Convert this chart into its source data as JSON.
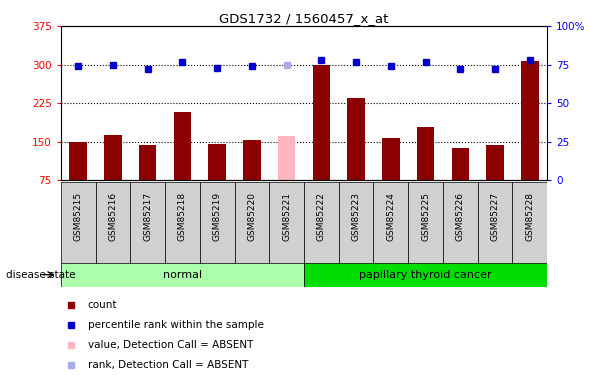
{
  "title": "GDS1732 / 1560457_x_at",
  "samples": [
    "GSM85215",
    "GSM85216",
    "GSM85217",
    "GSM85218",
    "GSM85219",
    "GSM85220",
    "GSM85221",
    "GSM85222",
    "GSM85223",
    "GSM85224",
    "GSM85225",
    "GSM85226",
    "GSM85227",
    "GSM85228"
  ],
  "bar_values": [
    150,
    162,
    143,
    207,
    145,
    153,
    160,
    300,
    235,
    157,
    178,
    138,
    143,
    307
  ],
  "bar_absent": [
    false,
    false,
    false,
    false,
    false,
    false,
    true,
    false,
    false,
    false,
    false,
    false,
    false,
    false
  ],
  "dot_values": [
    74,
    75,
    72,
    77,
    73,
    74,
    75,
    78,
    77,
    74,
    77,
    72,
    72,
    78
  ],
  "dot_absent": [
    false,
    false,
    false,
    false,
    false,
    false,
    true,
    false,
    false,
    false,
    false,
    false,
    false,
    false
  ],
  "normal_group": [
    0,
    1,
    2,
    3,
    4,
    5,
    6
  ],
  "cancer_group": [
    7,
    8,
    9,
    10,
    11,
    12,
    13
  ],
  "ylim_left": [
    75,
    375
  ],
  "ylim_right": [
    0,
    100
  ],
  "yticks_left": [
    75,
    150,
    225,
    300,
    375
  ],
  "yticks_right": [
    0,
    25,
    50,
    75,
    100
  ],
  "ytick_labels_left": [
    "75",
    "150",
    "225",
    "300",
    "375"
  ],
  "ytick_labels_right": [
    "0",
    "25",
    "50",
    "75",
    "100%"
  ],
  "bar_color": "#8B0000",
  "bar_absent_color": "#FFB6C1",
  "dot_color": "#0000CC",
  "dot_absent_color": "#AAAAEE",
  "normal_bg": "#AAFFAA",
  "cancer_bg": "#00DD00",
  "sample_label_bg": "#D0D0D0",
  "background_color": "#ffffff",
  "plot_bg": "#ffffff",
  "xlabel_normal": "normal",
  "xlabel_cancer": "papillary thyroid cancer",
  "disease_state_label": "disease state",
  "legend_items": [
    {
      "label": "count",
      "color": "#8B0000"
    },
    {
      "label": "percentile rank within the sample",
      "color": "#0000CC"
    },
    {
      "label": "value, Detection Call = ABSENT",
      "color": "#FFB6C1"
    },
    {
      "label": "rank, Detection Call = ABSENT",
      "color": "#AAAAEE"
    }
  ]
}
